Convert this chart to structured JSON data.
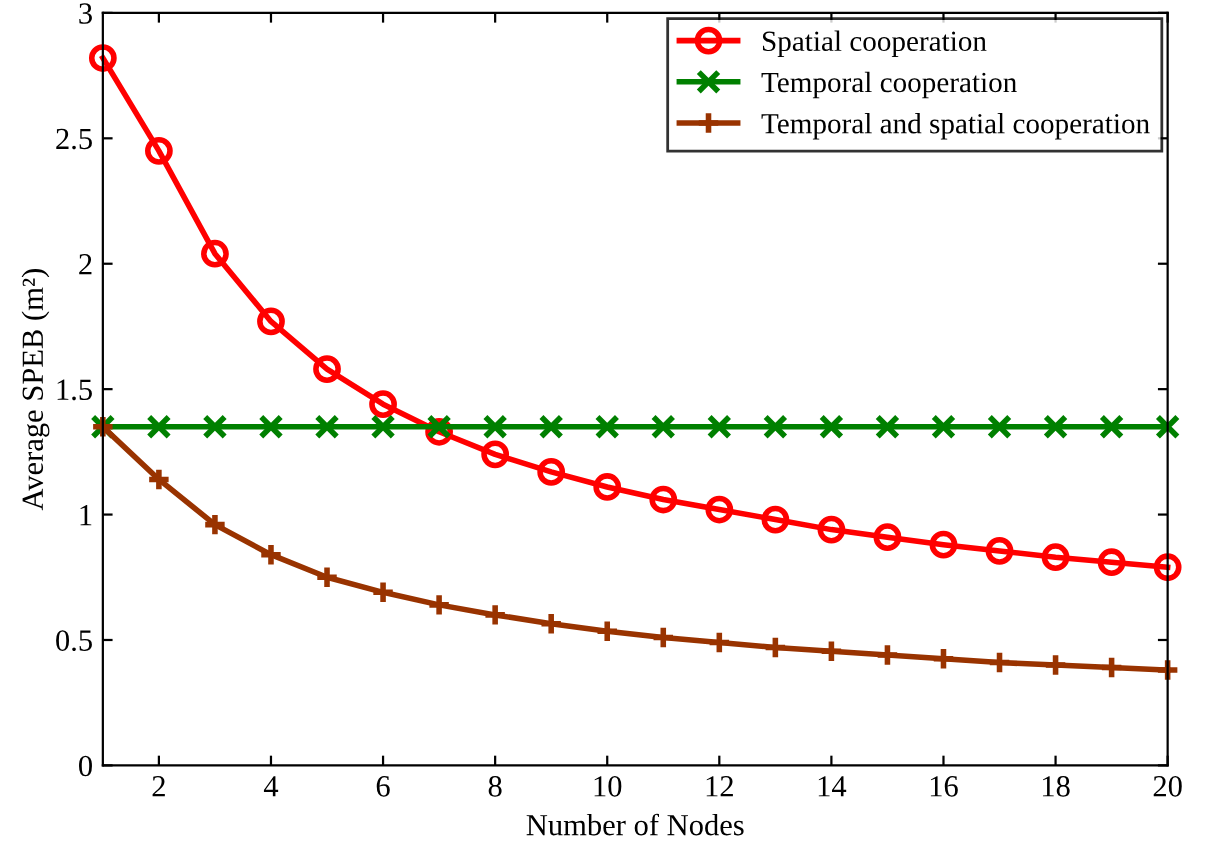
{
  "chart_data": {
    "type": "line",
    "xlabel": "Number of Nodes",
    "ylabel": "Average SPEB (m²)",
    "x": [
      1,
      2,
      3,
      4,
      5,
      6,
      7,
      8,
      9,
      10,
      11,
      12,
      13,
      14,
      15,
      16,
      17,
      18,
      19,
      20
    ],
    "xlim": [
      1,
      20
    ],
    "xticks": [
      2,
      4,
      6,
      8,
      10,
      12,
      14,
      16,
      18,
      20
    ],
    "ylim": [
      0,
      3
    ],
    "yticks": [
      0,
      0.5,
      1,
      1.5,
      2,
      2.5,
      3
    ],
    "grid": false,
    "legend": "top right",
    "line_style": "solid",
    "series": [
      {
        "name": "Spatial cooperation",
        "color": "#ff0000",
        "marker": "circle",
        "values": [
          2.82,
          2.45,
          2.04,
          1.77,
          1.58,
          1.44,
          1.33,
          1.24,
          1.17,
          1.11,
          1.06,
          1.02,
          0.98,
          0.94,
          0.91,
          0.88,
          0.855,
          0.83,
          0.81,
          0.79
        ]
      },
      {
        "name": "Temporal cooperation",
        "color": "#008000",
        "marker": "cross",
        "values": [
          1.35,
          1.35,
          1.35,
          1.35,
          1.35,
          1.35,
          1.35,
          1.35,
          1.35,
          1.35,
          1.35,
          1.35,
          1.35,
          1.35,
          1.35,
          1.35,
          1.35,
          1.35,
          1.35,
          1.35
        ]
      },
      {
        "name": "Temporal and spatial cooperation",
        "color": "#993300",
        "marker": "plus",
        "values": [
          1.35,
          1.14,
          0.96,
          0.84,
          0.75,
          0.69,
          0.64,
          0.6,
          0.565,
          0.535,
          0.51,
          0.49,
          0.47,
          0.455,
          0.44,
          0.425,
          0.41,
          0.4,
          0.39,
          0.38
        ]
      }
    ]
  }
}
